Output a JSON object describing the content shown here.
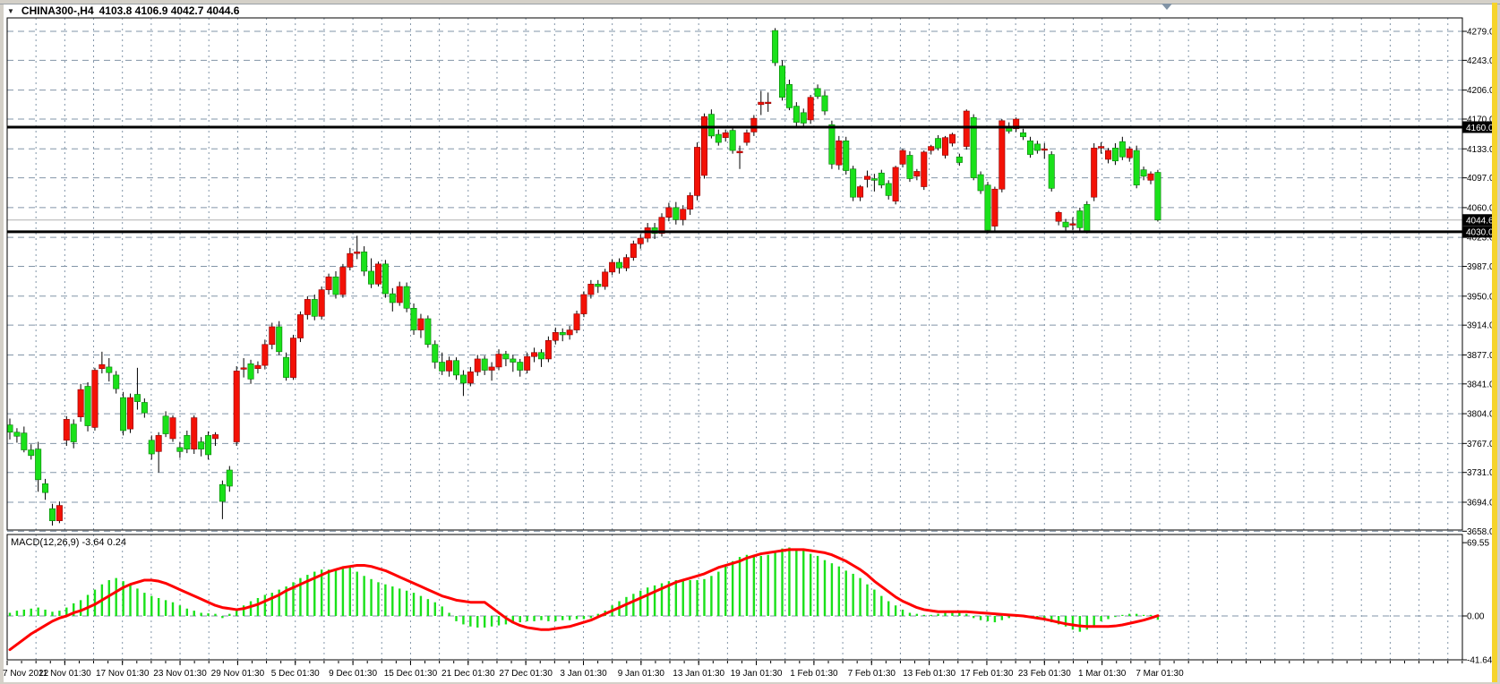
{
  "window": {
    "chrome_color": "#d4d0c8",
    "bg": "#ffffff",
    "grid_color": "#8295a8",
    "right_stripe_color": "#f6d42c"
  },
  "header": {
    "dropdown_icon": "▼",
    "symbol_period": "CHINA300-,H4",
    "ohlc_text": "4103.8 4106.9 4042.7 4044.6"
  },
  "price_axis": {
    "tick_labels": [
      "4279.0",
      "4243.0",
      "4206.0",
      "4170.0",
      "4133.0",
      "4097.0",
      "4060.0",
      "4023.0",
      "3987.0",
      "3950.0",
      "3914.0",
      "3877.0",
      "3841.0",
      "3804.0",
      "3767.0",
      "3731.0",
      "3694.0",
      "3658.0"
    ],
    "badges": [
      {
        "label": "4160.0",
        "price": 4160.0
      },
      {
        "label": "4044.6",
        "price": 4044.6
      },
      {
        "label": "4030.0",
        "price": 4030.0
      }
    ]
  },
  "time_axis": {
    "labels": [
      "7 Nov 2022",
      "11 Nov 01:30",
      "17 Nov 01:30",
      "23 Nov 01:30",
      "29 Nov 01:30",
      "5 Dec 01:30",
      "9 Dec 01:30",
      "15 Dec 01:30",
      "21 Dec 01:30",
      "27 Dec 01:30",
      "3 Jan 01:30",
      "9 Jan 01:30",
      "13 Jan 01:30",
      "19 Jan 01:30",
      "1 Feb 01:30",
      "7 Feb 01:30",
      "13 Feb 01:30",
      "17 Feb 01:30",
      "23 Feb 01:30",
      "1 Mar 01:30",
      "7 Mar 01:30"
    ]
  },
  "overlays": {
    "hlines": [
      {
        "price": 4160.0,
        "color": "#000000",
        "width": 3
      },
      {
        "price": 4030.0,
        "color": "#000000",
        "width": 3
      }
    ],
    "current_price_line": {
      "price": 4044.6,
      "color": "#b0b0b0"
    }
  },
  "macd_panel": {
    "label": "MACD(12,26,9) -3.64 0.24",
    "axis_labels": [
      "69.55",
      "0.00",
      "-41.64"
    ],
    "axis_values": [
      69.55,
      0,
      -41.64
    ]
  },
  "shift_marker": {
    "icon": "triangle-down",
    "color": "#8193a5"
  },
  "chart_data": {
    "type": "candlestick",
    "title": "CHINA300-,H4",
    "symbol": "CHINA300-",
    "timeframe": "H4",
    "up_color": "#f31106",
    "down_color": "#1ae11a",
    "wick_color": "#000000",
    "y_axis": {
      "range": [
        3658,
        4283
      ],
      "ticks": [
        4279,
        4243,
        4206,
        4170,
        4133,
        4097,
        4060,
        4023,
        3987,
        3950,
        3914,
        3877,
        3841,
        3804,
        3767,
        3731,
        3694,
        3658
      ]
    },
    "x_axis": {
      "labels": [
        "7 Nov 2022",
        "11 Nov 01:30",
        "17 Nov 01:30",
        "23 Nov 01:30",
        "29 Nov 01:30",
        "5 Dec 01:30",
        "9 Dec 01:30",
        "15 Dec 01:30",
        "21 Dec 01:30",
        "27 Dec 01:30",
        "3 Jan 01:30",
        "9 Jan 01:30",
        "13 Jan 01:30",
        "19 Jan 01:30",
        "1 Feb 01:30",
        "7 Feb 01:30",
        "13 Feb 01:30",
        "17 Feb 01:30",
        "23 Feb 01:30",
        "1 Mar 01:30",
        "7 Mar 01:30"
      ]
    },
    "last_candle_ohlc": {
      "open": 4103.8,
      "high": 4106.9,
      "low": 4042.7,
      "close": 4044.6
    },
    "candles": [
      [
        3790,
        3798,
        3772,
        3781
      ],
      [
        3781,
        3786,
        3768,
        3776
      ],
      [
        3780,
        3788,
        3756,
        3759
      ],
      [
        3759,
        3766,
        3747,
        3752
      ],
      [
        3760,
        3769,
        3707,
        3722
      ],
      [
        3717,
        3723,
        3697,
        3706
      ],
      [
        3686,
        3692,
        3665,
        3671
      ],
      [
        3671,
        3695,
        3668,
        3690
      ],
      [
        3771,
        3801,
        3764,
        3797
      ],
      [
        3791,
        3797,
        3761,
        3769
      ],
      [
        3800,
        3841,
        3794,
        3834
      ],
      [
        3838,
        3843,
        3782,
        3789
      ],
      [
        3787,
        3861,
        3783,
        3858
      ],
      [
        3860,
        3881,
        3854,
        3865
      ],
      [
        3862,
        3873,
        3844,
        3855
      ],
      [
        3852,
        3857,
        3829,
        3835
      ],
      [
        3824,
        3831,
        3777,
        3783
      ],
      [
        3785,
        3829,
        3780,
        3824
      ],
      [
        3828,
        3861,
        3809,
        3819
      ],
      [
        3818,
        3823,
        3799,
        3805
      ],
      [
        3771,
        3777,
        3747,
        3754
      ],
      [
        3757,
        3781,
        3731,
        3777
      ],
      [
        3801,
        3807,
        3775,
        3779
      ],
      [
        3773,
        3802,
        3769,
        3799
      ],
      [
        3762,
        3769,
        3749,
        3757
      ],
      [
        3777,
        3783,
        3755,
        3760
      ],
      [
        3760,
        3802,
        3754,
        3799
      ],
      [
        3769,
        3775,
        3751,
        3760
      ],
      [
        3777,
        3782,
        3747,
        3753
      ],
      [
        3773,
        3781,
        3764,
        3778
      ],
      [
        3716,
        3721,
        3673,
        3695
      ],
      [
        3734,
        3739,
        3707,
        3714
      ],
      [
        3769,
        3863,
        3764,
        3857
      ],
      [
        3860,
        3873,
        3849,
        3861
      ],
      [
        3866,
        3871,
        3841,
        3847
      ],
      [
        3860,
        3869,
        3854,
        3864
      ],
      [
        3864,
        3896,
        3859,
        3890
      ],
      [
        3890,
        3917,
        3884,
        3912
      ],
      [
        3912,
        3919,
        3877,
        3881
      ],
      [
        3874,
        3880,
        3845,
        3849
      ],
      [
        3849,
        3902,
        3846,
        3898
      ],
      [
        3898,
        3931,
        3893,
        3927
      ],
      [
        3927,
        3950,
        3921,
        3946
      ],
      [
        3946,
        3952,
        3920,
        3925
      ],
      [
        3925,
        3962,
        3921,
        3958
      ],
      [
        3958,
        3978,
        3952,
        3974
      ],
      [
        3974,
        3981,
        3947,
        3952
      ],
      [
        3952,
        3990,
        3948,
        3986
      ],
      [
        3986,
        4010,
        3982,
        4003
      ],
      [
        4003,
        4025,
        3996,
        4005
      ],
      [
        4005,
        4012,
        3975,
        3981
      ],
      [
        3981,
        3997,
        3960,
        3965
      ],
      [
        3965,
        3993,
        3962,
        3990
      ],
      [
        3990,
        3995,
        3948,
        3953
      ],
      [
        3953,
        3960,
        3931,
        3942
      ],
      [
        3942,
        3968,
        3938,
        3962
      ],
      [
        3962,
        3967,
        3930,
        3935
      ],
      [
        3935,
        3941,
        3902,
        3908
      ],
      [
        3908,
        3928,
        3898,
        3922
      ],
      [
        3922,
        3926,
        3886,
        3890
      ],
      [
        3890,
        3895,
        3860,
        3868
      ],
      [
        3868,
        3880,
        3852,
        3857
      ],
      [
        3857,
        3875,
        3850,
        3870
      ],
      [
        3870,
        3874,
        3846,
        3852
      ],
      [
        3852,
        3858,
        3826,
        3842
      ],
      [
        3842,
        3862,
        3838,
        3856
      ],
      [
        3856,
        3877,
        3851,
        3872
      ],
      [
        3872,
        3876,
        3852,
        3858
      ],
      [
        3858,
        3868,
        3845,
        3862
      ],
      [
        3862,
        3884,
        3858,
        3878
      ],
      [
        3878,
        3882,
        3863,
        3872
      ],
      [
        3872,
        3877,
        3856,
        3868
      ],
      [
        3868,
        3872,
        3850,
        3858
      ],
      [
        3858,
        3880,
        3854,
        3875
      ],
      [
        3875,
        3886,
        3868,
        3880
      ],
      [
        3880,
        3884,
        3862,
        3872
      ],
      [
        3872,
        3900,
        3868,
        3895
      ],
      [
        3895,
        3911,
        3890,
        3905
      ],
      [
        3905,
        3910,
        3894,
        3902
      ],
      [
        3902,
        3913,
        3896,
        3908
      ],
      [
        3908,
        3932,
        3904,
        3928
      ],
      [
        3928,
        3956,
        3924,
        3952
      ],
      [
        3952,
        3970,
        3947,
        3965
      ],
      [
        3965,
        3970,
        3954,
        3962
      ],
      [
        3962,
        3984,
        3958,
        3980
      ],
      [
        3980,
        3996,
        3976,
        3992
      ],
      [
        3992,
        3997,
        3978,
        3985
      ],
      [
        3985,
        4002,
        3981,
        3998
      ],
      [
        3998,
        4019,
        3994,
        4015
      ],
      [
        4015,
        4027,
        4009,
        4022
      ],
      [
        4022,
        4041,
        4017,
        4035
      ],
      [
        4035,
        4041,
        4021,
        4028
      ],
      [
        4028,
        4053,
        4024,
        4048
      ],
      [
        4048,
        4066,
        4043,
        4060
      ],
      [
        4060,
        4067,
        4039,
        4045
      ],
      [
        4045,
        4063,
        4038,
        4058
      ],
      [
        4058,
        4079,
        4051,
        4075
      ],
      [
        4075,
        4141,
        4069,
        4135
      ],
      [
        4100,
        4177,
        4096,
        4173
      ],
      [
        4176,
        4182,
        4146,
        4149
      ],
      [
        4151,
        4157,
        4137,
        4141
      ],
      [
        4147,
        4157,
        4142,
        4153
      ],
      [
        4156,
        4161,
        4127,
        4131
      ],
      [
        4128,
        4137,
        4108,
        4130
      ],
      [
        4141,
        4157,
        4137,
        4153
      ],
      [
        4154,
        4175,
        4149,
        4171
      ],
      [
        4188,
        4205,
        4175,
        4191
      ],
      [
        4191,
        4203,
        4179,
        4191
      ],
      [
        4280,
        4283,
        4236,
        4240
      ],
      [
        4236,
        4243,
        4193,
        4197
      ],
      [
        4213,
        4219,
        4181,
        4184
      ],
      [
        4186,
        4191,
        4161,
        4166
      ],
      [
        4178,
        4183,
        4159,
        4165
      ],
      [
        4169,
        4200,
        4164,
        4197
      ],
      [
        4208,
        4213,
        4195,
        4198
      ],
      [
        4199,
        4205,
        4175,
        4180
      ],
      [
        4163,
        4168,
        4108,
        4114
      ],
      [
        4113,
        4149,
        4107,
        4143
      ],
      [
        4143,
        4148,
        4101,
        4106
      ],
      [
        4108,
        4112,
        4068,
        4073
      ],
      [
        4073,
        4088,
        4068,
        4086
      ],
      [
        4095,
        4106,
        4085,
        4099
      ],
      [
        4096,
        4102,
        4080,
        4094
      ],
      [
        4103,
        4107,
        4084,
        4088
      ],
      [
        4090,
        4094,
        4070,
        4075
      ],
      [
        4068,
        4112,
        4064,
        4110
      ],
      [
        4114,
        4133,
        4110,
        4131
      ],
      [
        4125,
        4130,
        4092,
        4096
      ],
      [
        4099,
        4108,
        4094,
        4105
      ],
      [
        4086,
        4131,
        4082,
        4129
      ],
      [
        4131,
        4138,
        4126,
        4136
      ],
      [
        4146,
        4150,
        4131,
        4134
      ],
      [
        4125,
        4149,
        4121,
        4147
      ],
      [
        4140,
        4153,
        4136,
        4151
      ],
      [
        4123,
        4127,
        4112,
        4116
      ],
      [
        4136,
        4182,
        4132,
        4180
      ],
      [
        4172,
        4176,
        4094,
        4097
      ],
      [
        4101,
        4105,
        4077,
        4081
      ],
      [
        4088,
        4092,
        4028,
        4032
      ],
      [
        4037,
        4086,
        4030,
        4083
      ],
      [
        4083,
        4170,
        4079,
        4168
      ],
      [
        4160,
        4166,
        4152,
        4155
      ],
      [
        4158,
        4172,
        4154,
        4170
      ],
      [
        4153,
        4158,
        4144,
        4148
      ],
      [
        4143,
        4148,
        4122,
        4126
      ],
      [
        4139,
        4143,
        4127,
        4131
      ],
      [
        4133,
        4140,
        4121,
        4133
      ],
      [
        4126,
        4130,
        4080,
        4084
      ],
      [
        4043,
        4056,
        4038,
        4054
      ],
      [
        4042,
        4046,
        4031,
        4036
      ],
      [
        4040,
        4048,
        4032,
        4040
      ],
      [
        4056,
        4060,
        4031,
        4035
      ],
      [
        4064,
        4068,
        4028,
        4031
      ],
      [
        4073,
        4140,
        4068,
        4134
      ],
      [
        4134,
        4141,
        4127,
        4136
      ],
      [
        4120,
        4134,
        4115,
        4131
      ],
      [
        4134,
        4140,
        4113,
        4118
      ],
      [
        4142,
        4148,
        4119,
        4123
      ],
      [
        4122,
        4136,
        4117,
        4133
      ],
      [
        4131,
        4137,
        4084,
        4088
      ],
      [
        4107,
        4111,
        4094,
        4099
      ],
      [
        4094,
        4105,
        4089,
        4102
      ],
      [
        4103.8,
        4106.9,
        4042.7,
        4044.6
      ]
    ],
    "indicator": {
      "name": "MACD",
      "params": [
        12,
        26,
        9
      ],
      "current_macd": -3.64,
      "current_signal": 0.24,
      "range": [
        -41.64,
        69.55
      ],
      "zero_line": 0,
      "histogram_color": "#1ae11a",
      "signal_color": "#ff0000",
      "histogram": [
        3,
        5,
        6,
        7,
        8,
        6,
        4,
        5,
        8,
        12,
        15,
        20,
        25,
        30,
        34,
        36,
        33,
        30,
        26,
        22,
        19,
        17,
        15,
        13,
        10,
        7,
        5,
        3,
        2.5,
        2,
        -2,
        2,
        5,
        10,
        14,
        17,
        20,
        22,
        25,
        28,
        32,
        36,
        39,
        42,
        44,
        44,
        44,
        45,
        46,
        42,
        38,
        35,
        32,
        30,
        28,
        26,
        24,
        22,
        19,
        16,
        13,
        9,
        3,
        -5,
        -8,
        -10,
        -11,
        -11,
        -10,
        -9,
        -8,
        -7,
        -6,
        -5,
        -5,
        -4,
        -5,
        -5,
        -4,
        -4,
        -3,
        -3,
        -2,
        2,
        5,
        10,
        14,
        18,
        21,
        24,
        27,
        29,
        31,
        33,
        34,
        34,
        34,
        34,
        35,
        38,
        42,
        47,
        52,
        56,
        58,
        58,
        57,
        58,
        61,
        64,
        65,
        64,
        62,
        59,
        57,
        53,
        50,
        47,
        43,
        40,
        36,
        30,
        25,
        19,
        14,
        10,
        6,
        3,
        2,
        1,
        1,
        2,
        3,
        4,
        3,
        2,
        -2,
        -4,
        -5,
        -6,
        -4,
        -2,
        -1,
        1,
        -1,
        -2,
        -4,
        -6,
        -8,
        -10,
        -13,
        -15,
        -13,
        -9,
        -5,
        -3,
        -1,
        1,
        2,
        2,
        1,
        1,
        -3.64
      ],
      "signal": [
        -32,
        -27,
        -22,
        -17,
        -13,
        -9,
        -5,
        -2,
        0,
        3,
        5,
        8,
        11,
        15,
        19,
        23,
        27,
        30,
        32,
        34,
        34,
        33,
        31,
        28,
        25,
        22,
        19,
        16,
        13,
        10,
        8,
        7,
        6,
        7,
        9,
        11,
        14,
        17,
        20,
        24,
        27,
        30,
        33,
        36,
        39,
        42,
        44,
        46,
        47,
        48,
        48,
        47,
        45,
        43,
        40,
        37,
        34,
        31,
        28,
        25,
        22,
        19,
        17,
        15,
        14,
        13,
        13,
        13,
        8,
        3,
        -2,
        -6,
        -9,
        -11,
        -12,
        -13,
        -13,
        -12,
        -11,
        -10,
        -8,
        -6,
        -4,
        -1,
        2,
        5,
        8,
        11,
        14,
        17,
        20,
        23,
        26,
        29,
        32,
        34,
        36,
        38,
        40,
        43,
        46,
        48,
        50,
        52,
        55,
        57,
        59,
        60,
        61,
        62,
        63,
        63,
        63,
        62,
        61,
        60,
        58,
        55,
        52,
        48,
        44,
        39,
        33,
        28,
        23,
        18,
        14,
        11,
        8,
        6,
        5,
        4,
        4,
        4,
        4,
        4,
        3.5,
        3,
        2.5,
        2,
        1.5,
        1,
        0.5,
        0,
        -1,
        -2,
        -3,
        -4.5,
        -6,
        -7.5,
        -8.5,
        -9.5,
        -10,
        -10,
        -10,
        -10,
        -9.5,
        -8.5,
        -7,
        -5.5,
        -4,
        -2,
        0.24
      ]
    }
  }
}
